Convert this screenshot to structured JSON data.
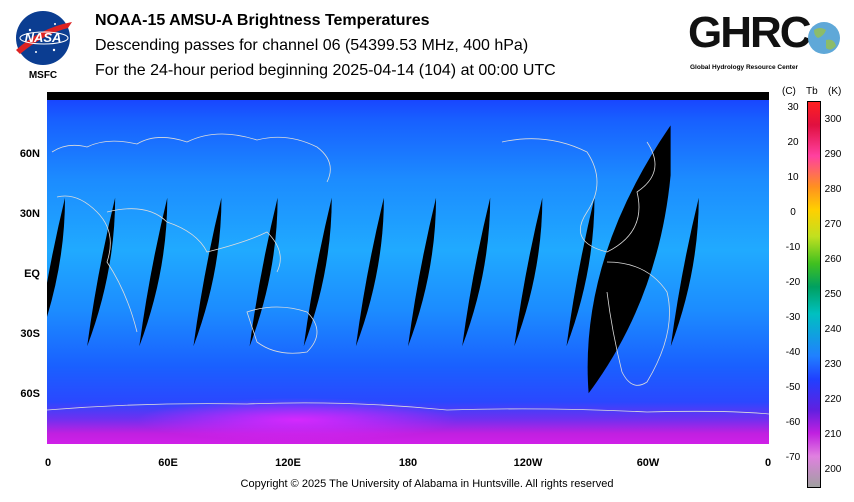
{
  "header": {
    "title": "NOAA-15 AMSU-A Brightness Temperatures",
    "subtitle": "Descending passes for channel 06 (54399.53 MHz, 400 hPa)",
    "period": "For the 24-hour period beginning 2025-04-14 (104) at 00:00 UTC"
  },
  "logos": {
    "nasa": {
      "text": "NASA",
      "sub": "MSFC"
    },
    "ghrc": {
      "text": "GHRC",
      "sub": "Global Hydrology Resource Center"
    }
  },
  "map": {
    "lat_labels": [
      "60N",
      "30N",
      "EQ",
      "30S",
      "60S"
    ],
    "lon_labels": [
      "0",
      "60E",
      "120E",
      "180",
      "120W",
      "60W",
      "0"
    ],
    "swath_centers_lon": [
      2,
      27,
      53,
      80,
      108,
      135,
      161,
      187,
      214,
      240,
      266,
      290,
      318
    ],
    "large_gap": {
      "lon_center": 290,
      "lat_top": 75,
      "lat_bottom": -62
    }
  },
  "colorbar": {
    "header_c": "(C)",
    "header_tb": "Tb",
    "header_k": "(K)",
    "celsius_labels": [
      "30",
      "20",
      "10",
      "0",
      "-10",
      "-20",
      "-30",
      "-40",
      "-50",
      "-60",
      "-70"
    ],
    "kelvin_labels": [
      "300",
      "290",
      "280",
      "270",
      "260",
      "250",
      "240",
      "230",
      "220",
      "210",
      "200"
    ],
    "min_k": 195,
    "max_k": 305
  },
  "footer": {
    "copyright": "Copyright © 2025 The University of Alabama in Huntsville.  All rights reserved"
  },
  "colors": {
    "cold": "#c020e0",
    "cool": "#1060ff",
    "mid": "#20b0ff",
    "gap": "#000000",
    "coast": "#d8d8d8"
  }
}
